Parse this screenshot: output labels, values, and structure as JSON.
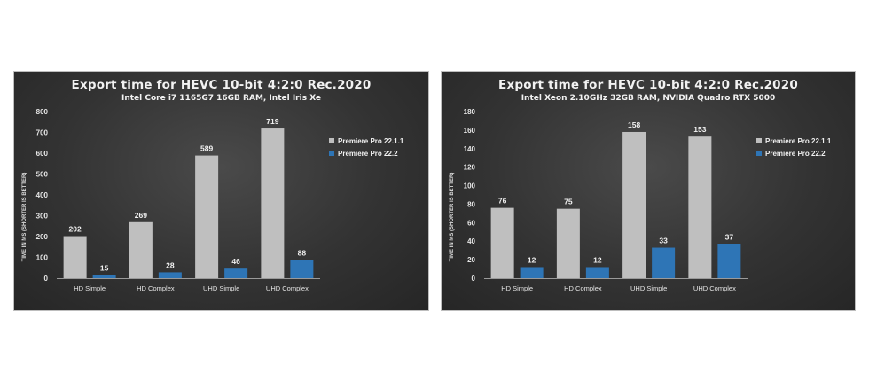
{
  "colors": {
    "series1": "#bfbfbf",
    "series2": "#2e75b6"
  },
  "chart_data": [
    {
      "type": "bar",
      "title": "Export time for HEVC 10-bit 4:2:0 Rec.2020",
      "subtitle": "Intel Core i7 1165G7 16GB RAM, Intel Iris Xe",
      "xlabel": "",
      "ylabel": "TIME IN MS (SHORTER IS BETTER)",
      "categories": [
        "HD Simple",
        "HD Complex",
        "UHD Simple",
        "UHD Complex"
      ],
      "series": [
        {
          "name": "Premiere Pro 22.1.1",
          "values": [
            202,
            269,
            589,
            719
          ]
        },
        {
          "name": "Premiere Pro 22.2",
          "values": [
            15,
            28,
            46,
            88
          ]
        }
      ],
      "ylim": [
        0,
        800
      ],
      "yticks": [
        "0",
        "100",
        "200",
        "300",
        "400",
        "500",
        "600",
        "700",
        "800"
      ],
      "grid": false,
      "legend": "right"
    },
    {
      "type": "bar",
      "title": "Export time for HEVC 10-bit 4:2:0 Rec.2020",
      "subtitle": "Intel Xeon 2.10GHz 32GB RAM, NVIDIA Quadro RTX 5000",
      "xlabel": "",
      "ylabel": "TIME IN MS (SHORTER IS BETTER)",
      "categories": [
        "HD Simple",
        "HD Complex",
        "UHD Simple",
        "UHD Complex"
      ],
      "series": [
        {
          "name": "Premiere Pro 22.1.1",
          "values": [
            76,
            75,
            158,
            153
          ]
        },
        {
          "name": "Premiere Pro 22.2",
          "values": [
            12,
            12,
            33,
            37
          ]
        }
      ],
      "ylim": [
        0,
        180
      ],
      "yticks": [
        "0",
        "20",
        "40",
        "60",
        "80",
        "100",
        "120",
        "140",
        "160",
        "180"
      ],
      "grid": false,
      "legend": "right"
    }
  ]
}
